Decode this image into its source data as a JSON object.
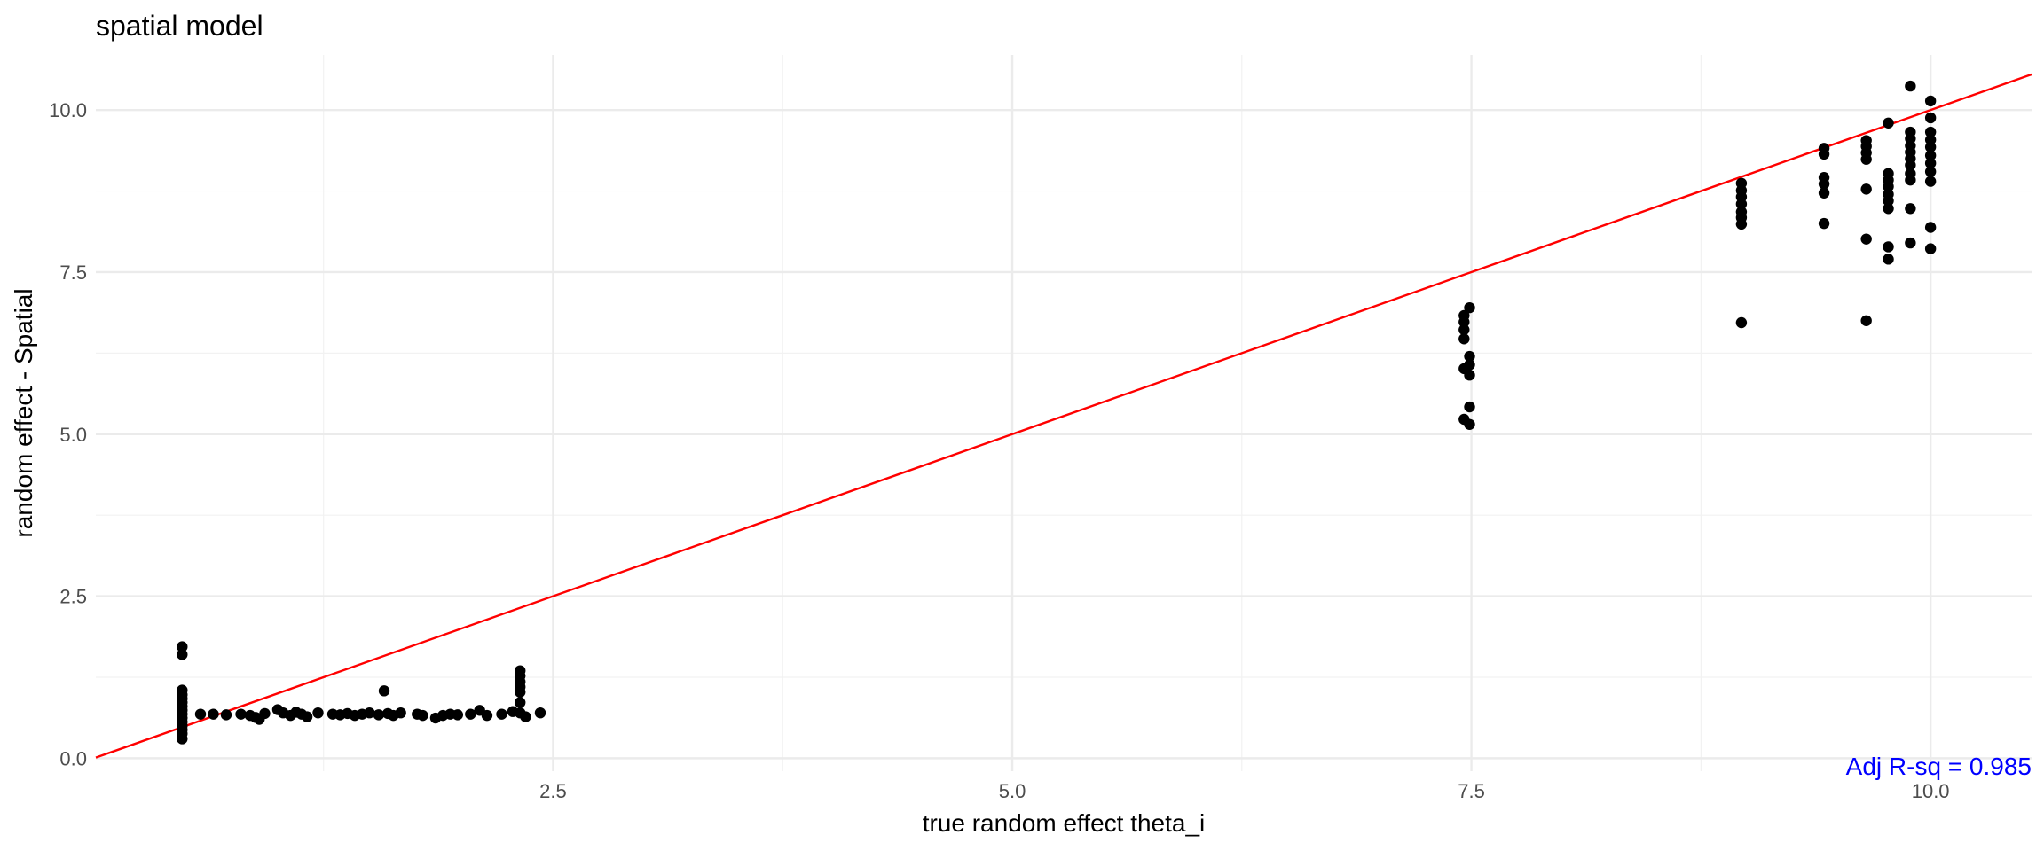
{
  "chart_data": {
    "type": "scatter",
    "title": "spatial model",
    "xlabel": "true random effect theta_i",
    "ylabel": "random effect - Spatial",
    "xlim": [
      0.01,
      10.55
    ],
    "ylim": [
      -0.2,
      10.85
    ],
    "x_ticks": [
      "2.5",
      "5.0",
      "7.5",
      "10.0"
    ],
    "y_ticks": [
      "0.0",
      "2.5",
      "5.0",
      "7.5",
      "10.0"
    ],
    "grid": true,
    "annotation": {
      "text": "Adj R-sq = 0.985",
      "color": "#0000ff",
      "position": "bottom-right"
    },
    "reference_line": {
      "intercept": 0,
      "slope": 1,
      "color": "#ff0000"
    },
    "point_color": "#000000",
    "points": [
      [
        0.48,
        1.72
      ],
      [
        0.48,
        1.6
      ],
      [
        0.48,
        1.05
      ],
      [
        0.48,
        0.98
      ],
      [
        0.48,
        0.92
      ],
      [
        0.48,
        0.86
      ],
      [
        0.48,
        0.8
      ],
      [
        0.48,
        0.74
      ],
      [
        0.48,
        0.68
      ],
      [
        0.48,
        0.62
      ],
      [
        0.48,
        0.56
      ],
      [
        0.48,
        0.5
      ],
      [
        0.48,
        0.44
      ],
      [
        0.48,
        0.38
      ],
      [
        0.48,
        0.3
      ],
      [
        0.58,
        0.68
      ],
      [
        0.65,
        0.68
      ],
      [
        0.72,
        0.67
      ],
      [
        0.8,
        0.68
      ],
      [
        0.85,
        0.66
      ],
      [
        0.88,
        0.63
      ],
      [
        0.9,
        0.6
      ],
      [
        0.93,
        0.69
      ],
      [
        1.0,
        0.75
      ],
      [
        1.03,
        0.7
      ],
      [
        1.07,
        0.66
      ],
      [
        1.1,
        0.71
      ],
      [
        1.13,
        0.68
      ],
      [
        1.16,
        0.64
      ],
      [
        1.22,
        0.7
      ],
      [
        1.3,
        0.68
      ],
      [
        1.34,
        0.67
      ],
      [
        1.38,
        0.69
      ],
      [
        1.42,
        0.66
      ],
      [
        1.46,
        0.68
      ],
      [
        1.5,
        0.7
      ],
      [
        1.55,
        0.67
      ],
      [
        1.58,
        1.04
      ],
      [
        1.6,
        0.69
      ],
      [
        1.63,
        0.66
      ],
      [
        1.67,
        0.7
      ],
      [
        1.76,
        0.68
      ],
      [
        1.79,
        0.66
      ],
      [
        1.86,
        0.62
      ],
      [
        1.9,
        0.66
      ],
      [
        1.94,
        0.68
      ],
      [
        1.98,
        0.67
      ],
      [
        2.05,
        0.68
      ],
      [
        2.1,
        0.74
      ],
      [
        2.14,
        0.66
      ],
      [
        2.22,
        0.68
      ],
      [
        2.28,
        0.72
      ],
      [
        2.32,
        1.35
      ],
      [
        2.32,
        1.27
      ],
      [
        2.32,
        1.18
      ],
      [
        2.32,
        1.1
      ],
      [
        2.32,
        1.02
      ],
      [
        2.32,
        0.86
      ],
      [
        2.32,
        0.7
      ],
      [
        2.35,
        0.64
      ],
      [
        2.43,
        0.7
      ],
      [
        7.46,
        6.83
      ],
      [
        7.46,
        6.73
      ],
      [
        7.46,
        6.61
      ],
      [
        7.46,
        6.47
      ],
      [
        7.46,
        6.01
      ],
      [
        7.46,
        5.23
      ],
      [
        7.49,
        6.95
      ],
      [
        7.49,
        6.2
      ],
      [
        7.49,
        6.07
      ],
      [
        7.49,
        5.91
      ],
      [
        7.49,
        5.42
      ],
      [
        7.49,
        5.15
      ],
      [
        8.97,
        8.87
      ],
      [
        8.97,
        8.76
      ],
      [
        8.97,
        8.66
      ],
      [
        8.97,
        8.55
      ],
      [
        8.97,
        8.43
      ],
      [
        8.97,
        8.34
      ],
      [
        8.97,
        8.24
      ],
      [
        8.97,
        6.72
      ],
      [
        9.42,
        9.41
      ],
      [
        9.42,
        9.32
      ],
      [
        9.42,
        8.96
      ],
      [
        9.42,
        8.86
      ],
      [
        9.42,
        8.72
      ],
      [
        9.42,
        8.25
      ],
      [
        9.65,
        9.53
      ],
      [
        9.65,
        9.44
      ],
      [
        9.65,
        9.34
      ],
      [
        9.65,
        9.24
      ],
      [
        9.65,
        8.78
      ],
      [
        9.65,
        8.01
      ],
      [
        9.65,
        6.75
      ],
      [
        9.77,
        9.8
      ],
      [
        9.77,
        9.02
      ],
      [
        9.77,
        8.92
      ],
      [
        9.77,
        8.82
      ],
      [
        9.77,
        8.7
      ],
      [
        9.77,
        8.6
      ],
      [
        9.77,
        8.48
      ],
      [
        9.77,
        7.89
      ],
      [
        9.77,
        7.7
      ],
      [
        9.89,
        10.37
      ],
      [
        9.89,
        9.66
      ],
      [
        9.89,
        9.56
      ],
      [
        9.89,
        9.45
      ],
      [
        9.89,
        9.35
      ],
      [
        9.89,
        9.25
      ],
      [
        9.89,
        9.15
      ],
      [
        9.89,
        9.02
      ],
      [
        9.89,
        8.92
      ],
      [
        9.89,
        8.48
      ],
      [
        9.89,
        7.95
      ],
      [
        10.0,
        10.14
      ],
      [
        10.0,
        9.88
      ],
      [
        10.0,
        9.66
      ],
      [
        10.0,
        9.54
      ],
      [
        10.0,
        9.43
      ],
      [
        10.0,
        9.3
      ],
      [
        10.0,
        9.18
      ],
      [
        10.0,
        9.05
      ],
      [
        10.0,
        8.9
      ],
      [
        10.0,
        8.19
      ],
      [
        10.0,
        7.86
      ]
    ]
  }
}
